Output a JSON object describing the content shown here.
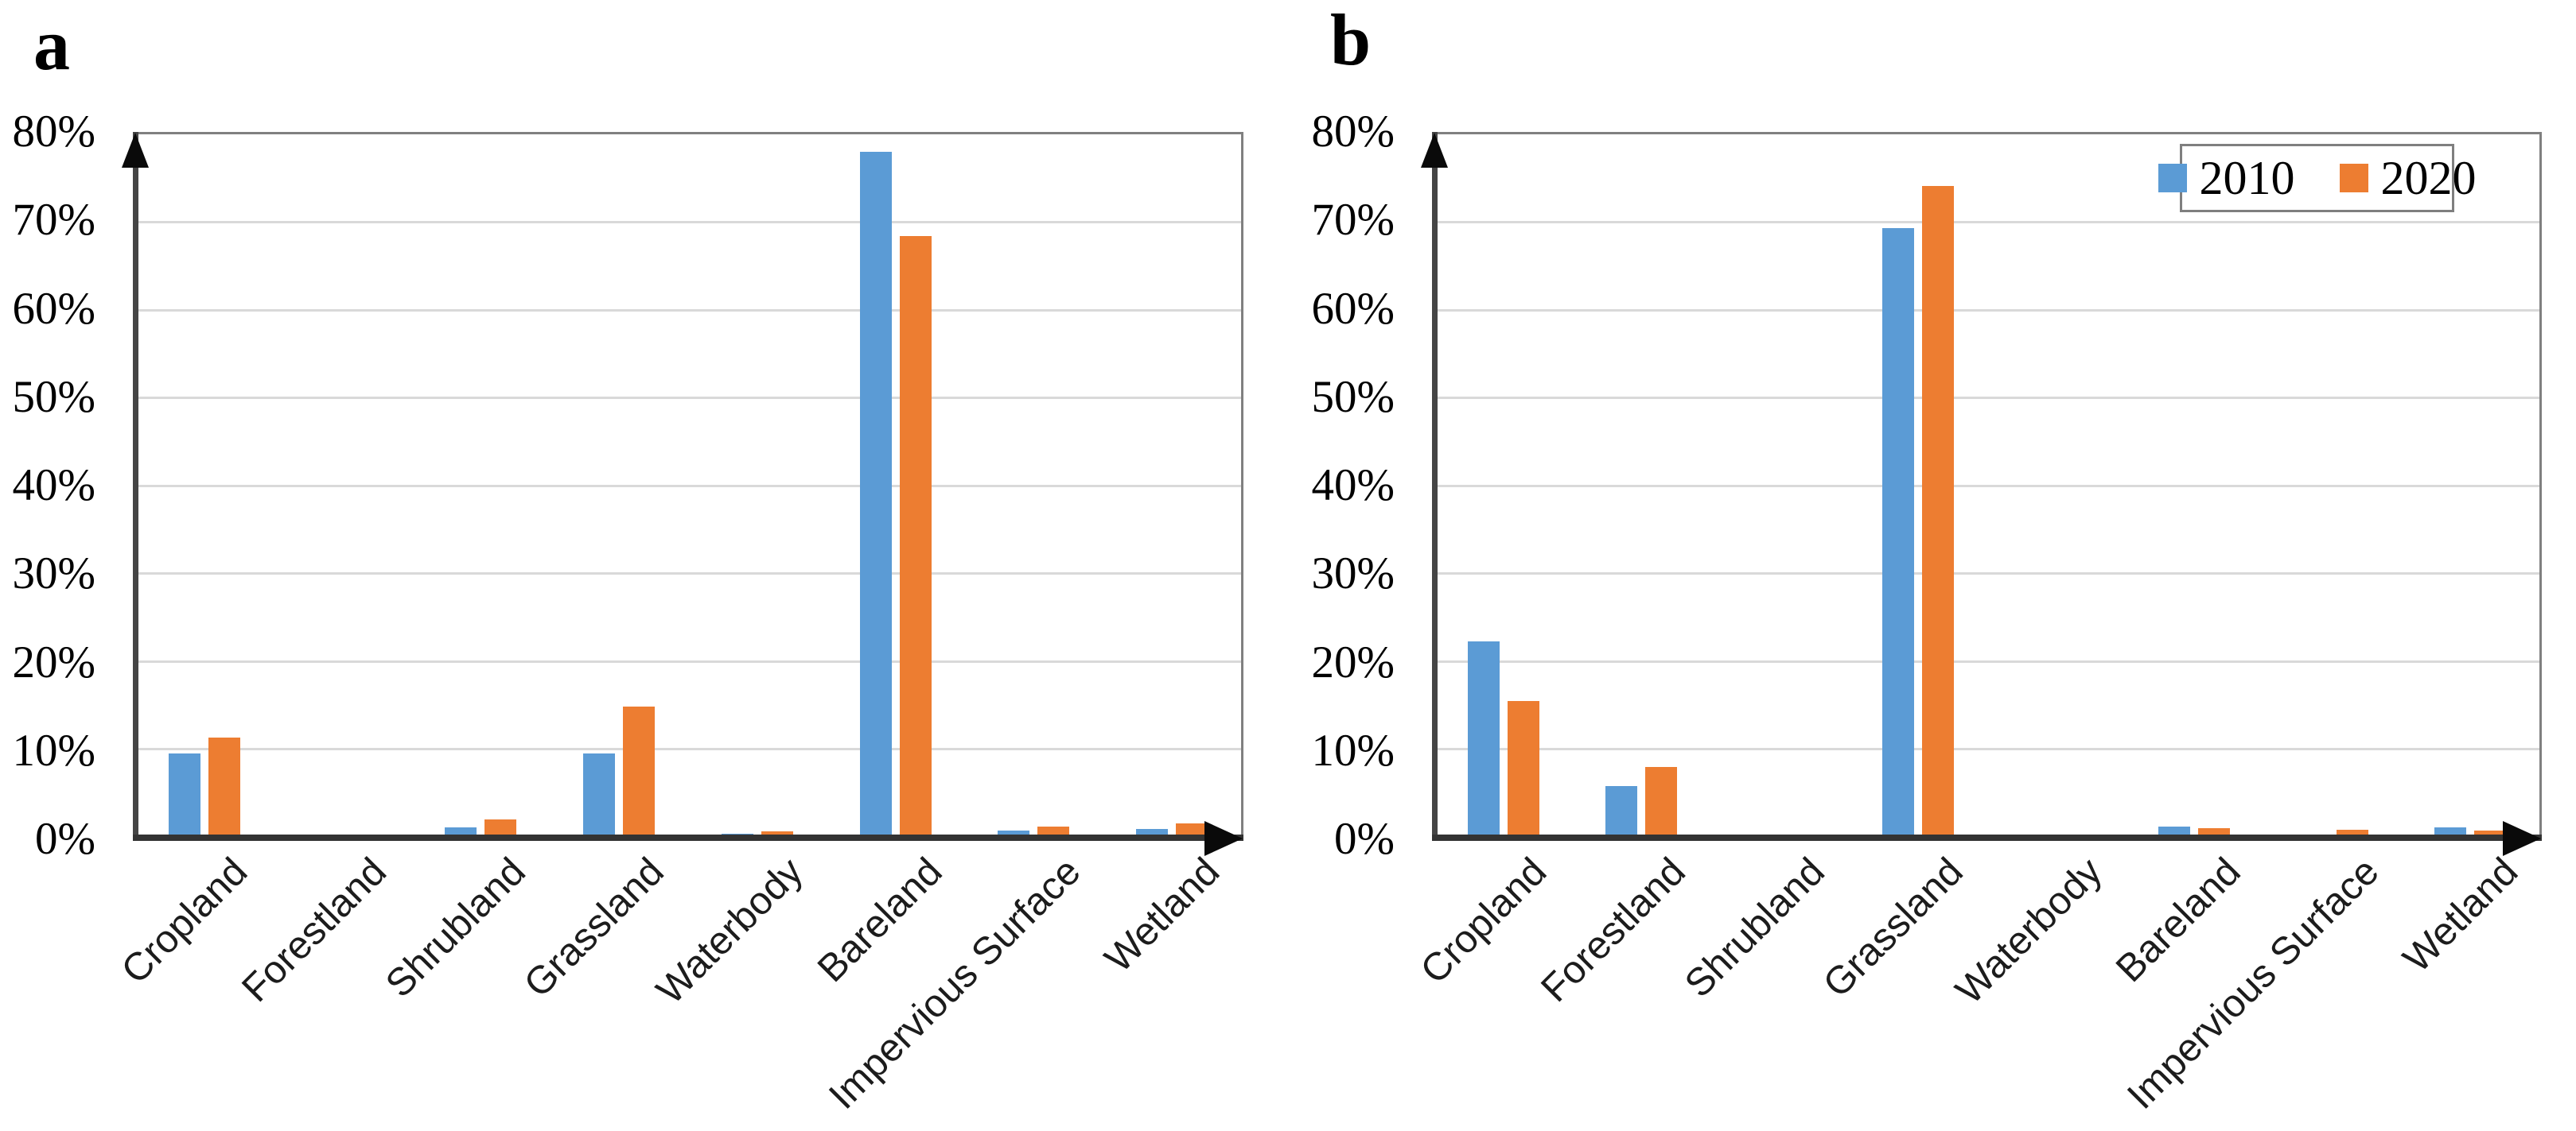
{
  "figure": {
    "description": "Two-panel grouped bar chart of land cover class percentages in 2010 and 2020",
    "accent_colors": {
      "series_2010": "#5B9BD5",
      "series_2020": "#ED7D31"
    },
    "grid_color": "#D9D9D9",
    "plot_border_color": "#808080"
  },
  "chart_data": [
    {
      "type": "bar",
      "panel_label": "a",
      "title": "",
      "xlabel": "",
      "ylabel": "",
      "ylim": [
        0,
        80
      ],
      "grid": true,
      "legend_visible": false,
      "yticks": [
        "80%",
        "70%",
        "60%",
        "50%",
        "40%",
        "30%",
        "20%",
        "10%",
        "0%"
      ],
      "categories": [
        "Cropland",
        "Forestland",
        "Shrubland",
        "Grassland",
        "Waterbody",
        "Bareland",
        "Impervious Surface",
        "Wetland"
      ],
      "series": [
        {
          "name": "2010",
          "color": "#5B9BD5",
          "values": [
            9.5,
            0,
            1.1,
            9.5,
            0.4,
            78.0,
            0.7,
            0.9
          ]
        },
        {
          "name": "2020",
          "color": "#ED7D31",
          "values": [
            11.3,
            0,
            2.0,
            14.8,
            0.6,
            68.4,
            1.2,
            1.5
          ]
        }
      ]
    },
    {
      "type": "bar",
      "panel_label": "b",
      "title": "",
      "xlabel": "",
      "ylabel": "",
      "ylim": [
        0,
        80
      ],
      "grid": true,
      "legend_visible": true,
      "legend_position": "top-right",
      "yticks": [
        "80%",
        "70%",
        "60%",
        "50%",
        "40%",
        "30%",
        "20%",
        "10%",
        "0%"
      ],
      "categories": [
        "Cropland",
        "Forestland",
        "Shrubland",
        "Grassland",
        "Waterbody",
        "Bareland",
        "Impervious Surface",
        "Wetland"
      ],
      "series": [
        {
          "name": "2010",
          "color": "#5B9BD5",
          "values": [
            22.3,
            5.8,
            0,
            69.3,
            0,
            1.2,
            0,
            1.1
          ]
        },
        {
          "name": "2020",
          "color": "#ED7D31",
          "values": [
            15.5,
            8.0,
            0,
            74.1,
            0,
            1.0,
            0.8,
            0.7
          ]
        }
      ]
    }
  ]
}
